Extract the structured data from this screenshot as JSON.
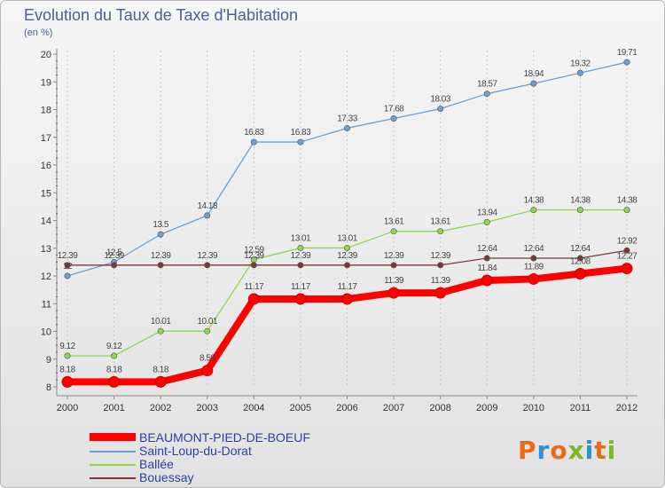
{
  "header": {
    "title": "Evolution du Taux de Taxe d'Habitation",
    "subtitle": "(en %)"
  },
  "logo": {
    "text": "Proxiti",
    "colors": [
      "#ea6a1c",
      "#2f8fd0",
      "#ea6a1c",
      "#7ab829",
      "#2f8fd0",
      "#ea6a1c",
      "#7ab829"
    ]
  },
  "chart_data": {
    "type": "line",
    "title": "Evolution du Taux de Taxe d'Habitation",
    "ylabel": "(en %)",
    "xlabel": "",
    "x": [
      "2000",
      "2001",
      "2002",
      "2003",
      "2004",
      "2005",
      "2006",
      "2007",
      "2008",
      "2009",
      "2010",
      "2011",
      "2012"
    ],
    "ylim": [
      8,
      20
    ],
    "yticks": [
      "8",
      "9",
      "10",
      "11",
      "12",
      "13",
      "14",
      "15",
      "16",
      "17",
      "18",
      "19",
      "20"
    ],
    "grid": "vertical dashed",
    "legend_position": "bottom-left",
    "series": [
      {
        "name": "BEAUMONT-PIED-DE-BOEUF",
        "color": "#ff0000",
        "values": [
          8.18,
          8.18,
          8.18,
          8.59,
          11.17,
          11.17,
          11.17,
          11.39,
          11.39,
          11.84,
          11.89,
          12.08,
          12.27
        ],
        "labels": [
          "8.18",
          "8.18",
          "8.18",
          "8.59",
          "11.17",
          "11.17",
          "11.17",
          "11.39",
          "11.39",
          "11.84",
          "11.89",
          "12.08",
          "12.27"
        ]
      },
      {
        "name": "Saint-Loup-du-Dorat",
        "color": "#6e9fcf",
        "values": [
          12,
          12.5,
          13.5,
          14.18,
          16.83,
          16.83,
          17.33,
          17.68,
          18.03,
          18.57,
          18.94,
          19.32,
          19.71
        ],
        "labels": [
          "12",
          "12.5",
          "13.5",
          "14.18",
          "16.83",
          "16.83",
          "17.33",
          "17.68",
          "18.03",
          "18.57",
          "18.94",
          "19.32",
          "19.71"
        ]
      },
      {
        "name": "Ballée",
        "color": "#8ed64a",
        "values": [
          9.12,
          9.12,
          10.01,
          10.01,
          12.59,
          13.01,
          13.01,
          13.61,
          13.61,
          13.94,
          14.38,
          14.38,
          14.38
        ],
        "labels": [
          "9.12",
          "9.12",
          "10.01",
          "10.01",
          "12.59",
          "13.01",
          "13.01",
          "13.61",
          "13.61",
          "13.94",
          "14.38",
          "14.38",
          "14.38"
        ]
      },
      {
        "name": "Bouessay",
        "color": "#7a3a3a",
        "values": [
          12.39,
          12.39,
          12.39,
          12.39,
          12.39,
          12.39,
          12.39,
          12.39,
          12.39,
          12.64,
          12.64,
          12.64,
          12.92
        ],
        "labels": [
          "12.39",
          "12.39",
          "12.39",
          "12.39",
          "12.39",
          "12.39",
          "12.39",
          "12.39",
          "12.39",
          "12.64",
          "12.64",
          "12.64",
          "12.92"
        ]
      }
    ]
  }
}
